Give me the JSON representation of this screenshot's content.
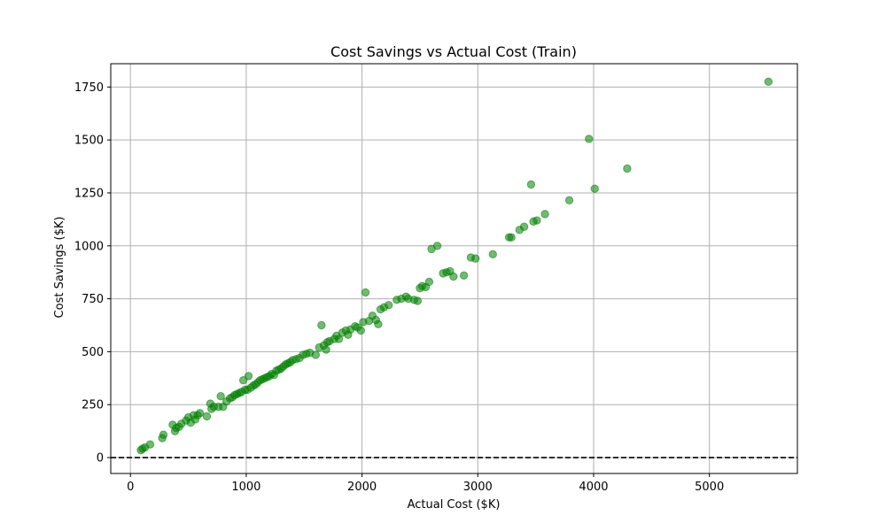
{
  "chart_data": {
    "type": "scatter",
    "title": "Cost Savings vs Actual Cost (Train)",
    "xlabel": "Actual Cost ($K)",
    "ylabel": "Cost Savings ($K)",
    "xlim": [
      -170,
      5760
    ],
    "ylim": [
      -75,
      1860
    ],
    "xticks": [
      0,
      1000,
      2000,
      3000,
      4000,
      5000
    ],
    "yticks": [
      0,
      250,
      500,
      750,
      1000,
      1250,
      1500,
      1750
    ],
    "xtick_labels": [
      "0",
      "1000",
      "2000",
      "3000",
      "4000",
      "5000"
    ],
    "ytick_labels": [
      "0",
      "250",
      "500",
      "750",
      "1000",
      "1250",
      "1500",
      "1750"
    ],
    "grid": true,
    "reference_line": {
      "y": 0,
      "style": "dashed",
      "color": "#000000"
    },
    "marker_color": "#008000",
    "marker_alpha": 0.55,
    "points": [
      [
        90,
        35
      ],
      [
        105,
        42
      ],
      [
        125,
        48
      ],
      [
        170,
        62
      ],
      [
        275,
        92
      ],
      [
        285,
        108
      ],
      [
        365,
        155
      ],
      [
        385,
        125
      ],
      [
        395,
        140
      ],
      [
        420,
        145
      ],
      [
        440,
        160
      ],
      [
        480,
        175
      ],
      [
        500,
        190
      ],
      [
        520,
        165
      ],
      [
        545,
        200
      ],
      [
        560,
        180
      ],
      [
        580,
        200
      ],
      [
        600,
        210
      ],
      [
        660,
        195
      ],
      [
        690,
        255
      ],
      [
        700,
        230
      ],
      [
        720,
        240
      ],
      [
        760,
        240
      ],
      [
        780,
        290
      ],
      [
        800,
        240
      ],
      [
        830,
        265
      ],
      [
        860,
        280
      ],
      [
        880,
        285
      ],
      [
        900,
        295
      ],
      [
        920,
        300
      ],
      [
        940,
        305
      ],
      [
        960,
        310
      ],
      [
        975,
        365
      ],
      [
        990,
        320
      ],
      [
        1010,
        320
      ],
      [
        1020,
        385
      ],
      [
        1040,
        330
      ],
      [
        1060,
        340
      ],
      [
        1080,
        345
      ],
      [
        1100,
        355
      ],
      [
        1120,
        365
      ],
      [
        1140,
        370
      ],
      [
        1160,
        375
      ],
      [
        1180,
        380
      ],
      [
        1200,
        385
      ],
      [
        1220,
        395
      ],
      [
        1240,
        390
      ],
      [
        1260,
        410
      ],
      [
        1280,
        415
      ],
      [
        1300,
        420
      ],
      [
        1320,
        430
      ],
      [
        1340,
        440
      ],
      [
        1360,
        445
      ],
      [
        1380,
        450
      ],
      [
        1400,
        460
      ],
      [
        1430,
        465
      ],
      [
        1460,
        470
      ],
      [
        1490,
        485
      ],
      [
        1520,
        490
      ],
      [
        1550,
        495
      ],
      [
        1600,
        485
      ],
      [
        1630,
        520
      ],
      [
        1650,
        625
      ],
      [
        1670,
        530
      ],
      [
        1690,
        510
      ],
      [
        1700,
        545
      ],
      [
        1720,
        550
      ],
      [
        1760,
        560
      ],
      [
        1780,
        575
      ],
      [
        1800,
        560
      ],
      [
        1830,
        590
      ],
      [
        1860,
        600
      ],
      [
        1880,
        580
      ],
      [
        1900,
        605
      ],
      [
        1940,
        620
      ],
      [
        1960,
        615
      ],
      [
        1990,
        600
      ],
      [
        2010,
        640
      ],
      [
        2030,
        780
      ],
      [
        2060,
        645
      ],
      [
        2090,
        670
      ],
      [
        2120,
        650
      ],
      [
        2140,
        630
      ],
      [
        2160,
        700
      ],
      [
        2190,
        710
      ],
      [
        2230,
        720
      ],
      [
        2300,
        745
      ],
      [
        2340,
        750
      ],
      [
        2380,
        760
      ],
      [
        2400,
        750
      ],
      [
        2450,
        745
      ],
      [
        2480,
        740
      ],
      [
        2500,
        800
      ],
      [
        2520,
        810
      ],
      [
        2550,
        805
      ],
      [
        2580,
        830
      ],
      [
        2600,
        985
      ],
      [
        2650,
        1000
      ],
      [
        2700,
        870
      ],
      [
        2730,
        875
      ],
      [
        2760,
        880
      ],
      [
        2790,
        855
      ],
      [
        2880,
        860
      ],
      [
        2940,
        945
      ],
      [
        2980,
        940
      ],
      [
        3130,
        960
      ],
      [
        3270,
        1040
      ],
      [
        3290,
        1040
      ],
      [
        3360,
        1075
      ],
      [
        3400,
        1090
      ],
      [
        3460,
        1290
      ],
      [
        3480,
        1115
      ],
      [
        3510,
        1120
      ],
      [
        3580,
        1150
      ],
      [
        3790,
        1215
      ],
      [
        3960,
        1505
      ],
      [
        4010,
        1270
      ],
      [
        4290,
        1365
      ],
      [
        5510,
        1775
      ]
    ]
  }
}
